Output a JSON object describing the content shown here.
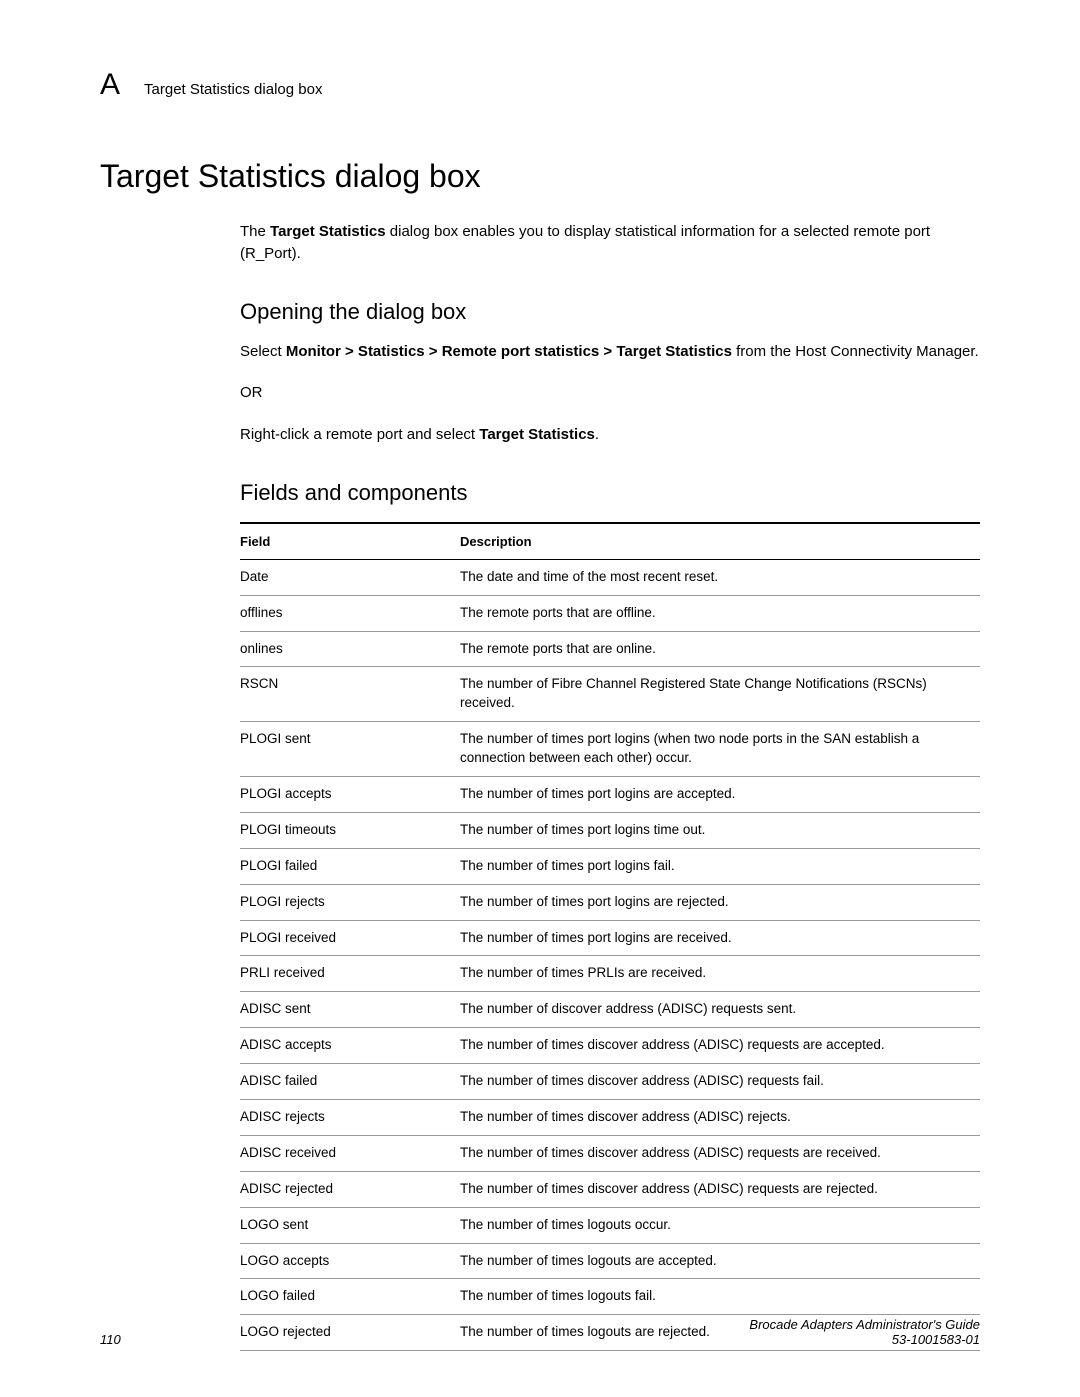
{
  "header": {
    "appendix_letter": "A",
    "section_name": "Target Statistics dialog box"
  },
  "title": "Target Statistics dialog box",
  "intro": {
    "pre": "The ",
    "bold": "Target Statistics",
    "post": " dialog box enables you to display statistical information for a selected remote port (R_Port)."
  },
  "opening": {
    "heading": "Opening the dialog box",
    "line1_pre": "Select ",
    "line1_bold": "Monitor > Statistics > Remote port statistics > Target Statistics",
    "line1_post": " from the Host Connectivity Manager.",
    "or": "OR",
    "line2_pre": "Right-click a remote port and select ",
    "line2_bold": "Target Statistics",
    "line2_post": "."
  },
  "fields_heading": "Fields and components",
  "table": {
    "col_field": "Field",
    "col_desc": "Description",
    "rows": [
      {
        "field": "Date",
        "desc": "The date and time of the most recent reset."
      },
      {
        "field": "offlines",
        "desc": "The remote ports that are offline."
      },
      {
        "field": "onlines",
        "desc": "The remote ports that are online."
      },
      {
        "field": "RSCN",
        "desc": "The number of Fibre Channel Registered State Change Notifications (RSCNs) received."
      },
      {
        "field": "PLOGI sent",
        "desc": "The number of times port logins (when two node ports in the SAN establish a connection between each other) occur."
      },
      {
        "field": "PLOGI accepts",
        "desc": "The number of times port logins are accepted."
      },
      {
        "field": "PLOGI timeouts",
        "desc": "The number of times port logins time out."
      },
      {
        "field": "PLOGI failed",
        "desc": "The number of times port logins fail."
      },
      {
        "field": "PLOGI rejects",
        "desc": "The number of times port logins are rejected."
      },
      {
        "field": "PLOGI received",
        "desc": "The number of times port logins are received."
      },
      {
        "field": "PRLI received",
        "desc": "The number of times PRLIs are received."
      },
      {
        "field": "ADISC sent",
        "desc": "The number of discover address (ADISC) requests sent."
      },
      {
        "field": "ADISC accepts",
        "desc": "The number of times discover address (ADISC) requests are accepted."
      },
      {
        "field": "ADISC failed",
        "desc": "The number of times discover address (ADISC) requests fail."
      },
      {
        "field": "ADISC rejects",
        "desc": "The number of times discover address (ADISC) rejects."
      },
      {
        "field": "ADISC received",
        "desc": "The number of times discover address (ADISC) requests are received."
      },
      {
        "field": "ADISC rejected",
        "desc": "The number of times discover address (ADISC) requests are rejected."
      },
      {
        "field": "LOGO sent",
        "desc": "The number of times logouts occur."
      },
      {
        "field": "LOGO accepts",
        "desc": "The number of times logouts are accepted."
      },
      {
        "field": "LOGO failed",
        "desc": "The number of times logouts fail."
      },
      {
        "field": "LOGO rejected",
        "desc": "The number of times logouts are rejected."
      }
    ]
  },
  "footer": {
    "page": "110",
    "guide": "Brocade Adapters Administrator's Guide",
    "docnum": "53-1001583-01"
  }
}
